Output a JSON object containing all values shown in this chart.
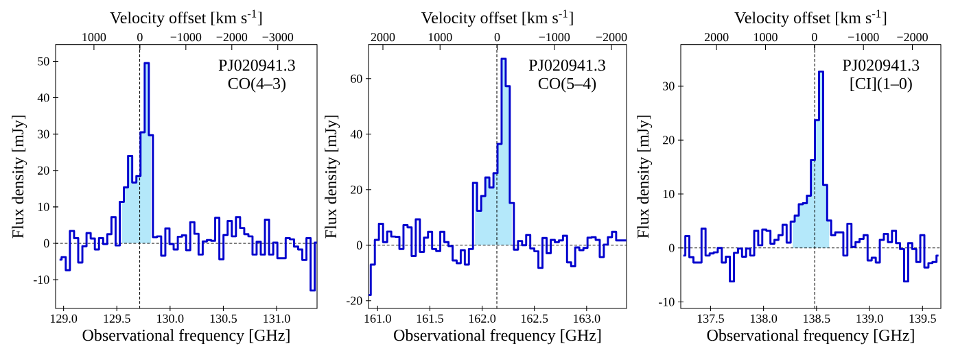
{
  "chart_data": [
    {
      "type": "step",
      "xlabel": "Observational frequency [GHz]",
      "ylabel": "Flux density [mJy]",
      "x2label": "Velocity offset [km s$^{-1}$]",
      "annotations": [
        "PJ020941.3",
        "CO(4–3)"
      ],
      "xlim": [
        128.925,
        131.38
      ],
      "xticks": [
        {
          "value": 129,
          "label": "129.0"
        },
        {
          "value": 129.5,
          "label": "129.5"
        },
        {
          "value": 130,
          "label": "130.0"
        },
        {
          "value": 130.5,
          "label": "130.5"
        },
        {
          "value": 131,
          "label": "131.0"
        }
      ],
      "ylim": [
        -17.9,
        54.6
      ],
      "yticks": [
        -10,
        0,
        10,
        20,
        30,
        40,
        50
      ],
      "x2lim": [
        1835,
        -3855
      ],
      "x2ticks": [
        1000,
        0,
        {
          "value": -1000,
          "label": "−1000"
        },
        {
          "value": -2000,
          "label": "−2000"
        },
        {
          "value": -3000,
          "label": "−3000"
        }
      ],
      "ref_lines": [
        {
          "axis": "y",
          "value": 0,
          "color": "#000000",
          "line_style": "dashed"
        },
        {
          "axis": "x",
          "value": 129.715,
          "color": "#000000",
          "line_style": "dashed"
        }
      ],
      "series": [
        {
          "type": "area",
          "color": "#b4e8fa",
          "x": [
            129.547,
            129.586,
            129.625,
            129.664,
            129.703,
            129.742,
            129.781,
            129.82
          ],
          "values": [
            11.4,
            15.4,
            24.0,
            16.7,
            18.5,
            30.5,
            49.5,
            29.7
          ]
        },
        {
          "type": "step",
          "color": "#0000cd",
          "x": [
            128.962,
            129.001,
            129.04,
            129.079,
            129.118,
            129.157,
            129.196,
            129.235,
            129.274,
            129.313,
            129.352,
            129.391,
            129.43,
            129.469,
            129.508,
            129.547,
            129.586,
            129.625,
            129.664,
            129.703,
            129.742,
            129.781,
            129.82,
            129.858,
            129.897,
            129.936,
            129.975,
            130.014,
            130.053,
            130.092,
            130.131,
            130.17,
            130.209,
            130.248,
            130.287,
            130.326,
            130.365,
            130.404,
            130.443,
            130.482,
            130.521,
            130.56,
            130.599,
            130.638,
            130.677,
            130.716,
            130.755,
            130.793,
            130.832,
            130.871,
            130.91,
            130.949,
            130.988,
            131.027,
            131.066,
            131.105,
            131.144,
            131.183,
            131.222,
            131.261,
            131.3,
            131.339,
            131.378
          ],
          "values": [
            -4.5,
            -3.8,
            -7.4,
            3.4,
            1.4,
            -5.3,
            -0.8,
            2.8,
            1.3,
            -1.7,
            1.4,
            -0.2,
            2.5,
            7.2,
            -0.6,
            11.4,
            15.4,
            24.0,
            16.7,
            18.5,
            30.5,
            49.5,
            29.7,
            1.7,
            1.9,
            -3.4,
            4.1,
            -0.2,
            -1.7,
            1.8,
            2.2,
            -1.9,
            5.8,
            2.6,
            -3.1,
            0.5,
            0.9,
            0.7,
            7.0,
            -4.4,
            2.3,
            6.1,
            1.9,
            7.2,
            4.2,
            2.5,
            1.9,
            -3.1,
            0.4,
            -3.1,
            6.5,
            -3.1,
            0.2,
            -4.1,
            -4.1,
            1.4,
            1.1,
            -0.9,
            -1.7,
            -4.6,
            1.4,
            -13.0,
            0.2
          ]
        }
      ]
    },
    {
      "type": "step",
      "xlabel": "Observational frequency [GHz]",
      "ylabel": "Flux density [mJy]",
      "x2label": "Velocity offset [km s$^{-1}$]",
      "annotations": [
        "PJ020941.3",
        "CO(5–4)"
      ],
      "xlim": [
        160.913,
        163.382
      ],
      "xticks": [
        {
          "value": 161,
          "label": "161.0"
        },
        {
          "value": 161.5,
          "label": "161.5"
        },
        {
          "value": 162,
          "label": "162.0"
        },
        {
          "value": 162.5,
          "label": "162.5"
        },
        {
          "value": 163,
          "label": "163.0"
        }
      ],
      "ylim": [
        -22.8,
        72.3
      ],
      "yticks": [
        -20,
        0,
        20,
        40,
        60
      ],
      "x2lim": [
        2252,
        -2264
      ],
      "x2ticks": [
        2000,
        1000,
        0,
        {
          "value": -1000,
          "label": "−1000"
        },
        {
          "value": -2000,
          "label": "−2000"
        }
      ],
      "ref_lines": [
        {
          "axis": "y",
          "value": 0,
          "color": "#000000",
          "line_style": "dashed"
        },
        {
          "axis": "x",
          "value": 162.141,
          "color": "#000000",
          "line_style": "dashed"
        }
      ],
      "series": [
        {
          "type": "area",
          "color": "#b4e8fa",
          "x": [
            161.932,
            161.971,
            162.011,
            162.05,
            162.089,
            162.128,
            162.167,
            162.206,
            162.245,
            162.284
          ],
          "values": [
            22.5,
            12.4,
            17.7,
            24.4,
            20.8,
            25.9,
            36.5,
            67.2,
            57.3,
            15.2
          ]
        },
        {
          "type": "step",
          "color": "#0000cd",
          "x": [
            160.915,
            160.954,
            160.993,
            161.032,
            161.072,
            161.111,
            161.15,
            161.189,
            161.228,
            161.267,
            161.306,
            161.345,
            161.385,
            161.424,
            161.463,
            161.502,
            161.541,
            161.58,
            161.619,
            161.658,
            161.698,
            161.737,
            161.776,
            161.815,
            161.854,
            161.893,
            161.932,
            161.971,
            162.011,
            162.05,
            162.089,
            162.128,
            162.167,
            162.206,
            162.245,
            162.284,
            162.324,
            162.363,
            162.402,
            162.441,
            162.48,
            162.519,
            162.558,
            162.597,
            162.637,
            162.676,
            162.715,
            162.754,
            162.793,
            162.832,
            162.871,
            162.91,
            162.95,
            162.989,
            163.028,
            163.067,
            163.106,
            163.145,
            163.184,
            163.223,
            163.263,
            163.302,
            163.341,
            163.38
          ],
          "values": [
            -18.0,
            -7.0,
            1.9,
            7.7,
            1.1,
            4.9,
            3.1,
            3.0,
            -1.4,
            7.2,
            6.4,
            -3.9,
            9.3,
            -2.4,
            2.7,
            4.8,
            -1.4,
            -2.1,
            4.8,
            1.1,
            -0.3,
            -5.5,
            -6.5,
            -1.8,
            -7.0,
            -1.4,
            22.5,
            12.4,
            17.7,
            24.4,
            20.8,
            25.9,
            36.5,
            67.2,
            57.3,
            15.2,
            -1.6,
            1.5,
            0.0,
            3.7,
            -1.2,
            -2.2,
            -8.2,
            2.6,
            -2.9,
            1.9,
            1.1,
            1.7,
            3.4,
            -6.2,
            -7.6,
            -0.8,
            -1.8,
            -1.0,
            2.7,
            2.9,
            1.9,
            -4.3,
            0.2,
            2.9,
            4.8,
            1.7,
            1.7,
            1.7
          ]
        }
      ]
    },
    {
      "type": "step",
      "xlabel": "Observational frequency [GHz]",
      "ylabel": "Flux density [mJy]",
      "x2label": "Velocity offset [km s$^{-1}$]",
      "annotations": [
        "PJ020941.3",
        "[CI](1–0)"
      ],
      "xlim": [
        137.219,
        139.673
      ],
      "xticks": [
        137.5,
        {
          "value": 138,
          "label": "138.0"
        },
        138.5,
        {
          "value": 139,
          "label": "139.0"
        },
        139.5
      ],
      "ylim": [
        -11.2,
        37.7
      ],
      "yticks": [
        -10,
        0,
        10,
        20,
        30
      ],
      "x2lim": [
        2731,
        -2581
      ],
      "x2ticks": [
        2000,
        1000,
        0,
        {
          "value": -1000,
          "label": "−1000"
        },
        {
          "value": -2000,
          "label": "−2000"
        }
      ],
      "ref_lines": [
        {
          "axis": "y",
          "value": 0,
          "color": "#000000",
          "line_style": "dashed"
        },
        {
          "axis": "x",
          "value": 138.483,
          "color": "#000000",
          "line_style": "dashed"
        }
      ],
      "series": [
        {
          "type": "area",
          "color": "#b4e8fa",
          "x": [
            138.275,
            138.313,
            138.352,
            138.39,
            138.428,
            138.466,
            138.504,
            138.543,
            138.581,
            138.619
          ],
          "values": [
            4.9,
            6.0,
            8.1,
            8.3,
            9.7,
            16.3,
            23.7,
            32.7,
            11.7,
            5.1
          ]
        },
        {
          "type": "step",
          "color": "#0000cd",
          "x": [
            137.243,
            137.281,
            137.319,
            137.358,
            137.396,
            137.434,
            137.472,
            137.511,
            137.549,
            137.587,
            137.625,
            137.663,
            137.702,
            137.74,
            137.778,
            137.816,
            137.855,
            137.893,
            137.931,
            137.969,
            138.007,
            138.046,
            138.084,
            138.122,
            138.16,
            138.199,
            138.237,
            138.275,
            138.313,
            138.352,
            138.39,
            138.428,
            138.466,
            138.504,
            138.543,
            138.581,
            138.619,
            138.657,
            138.696,
            138.734,
            138.772,
            138.81,
            138.849,
            138.887,
            138.925,
            138.963,
            139.001,
            139.04,
            139.078,
            139.116,
            139.154,
            139.193,
            139.231,
            139.269,
            139.307,
            139.345,
            139.384,
            139.422,
            139.46,
            139.498,
            139.537,
            139.575,
            139.613,
            139.651
          ],
          "values": [
            -1.4,
            2.2,
            -1.7,
            -2.7,
            -2.7,
            3.6,
            -1.4,
            -1.0,
            -0.8,
            0.0,
            -2.7,
            -1.6,
            -6.2,
            -0.9,
            -0.1,
            -1.6,
            -0.1,
            -1.4,
            3.2,
            0.5,
            3.4,
            3.2,
            0.8,
            1.5,
            2.4,
            4.3,
            1.0,
            4.9,
            6.0,
            8.1,
            8.3,
            9.7,
            16.3,
            23.7,
            32.7,
            11.7,
            5.1,
            2.4,
            2.9,
            2.9,
            -1.4,
            4.5,
            0.2,
            1.1,
            1.7,
            2.4,
            -2.3,
            -1.8,
            -2.7,
            1.5,
            2.6,
            1.1,
            3.2,
            0.9,
            -0.2,
            -6.2,
            0.9,
            -0.2,
            -2.6,
            2.4,
            -3.6,
            -2.8,
            -2.6,
            -1.4
          ]
        }
      ]
    }
  ]
}
